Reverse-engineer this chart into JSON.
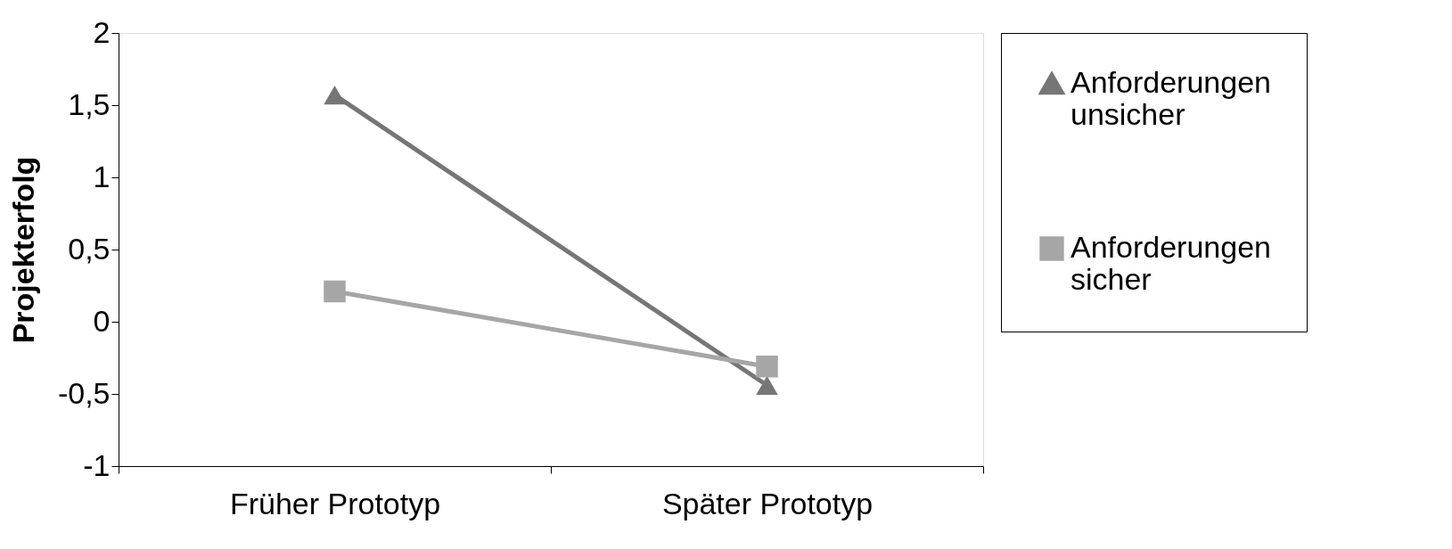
{
  "chart_data": {
    "type": "line",
    "ylabel": "Projekterfolg",
    "categories": [
      "Früher Prototyp",
      "Später Prototyp"
    ],
    "series": [
      {
        "name": "Anforderungen unsicher",
        "color": "#767676",
        "marker": "triangle",
        "values": [
          1.57,
          -0.44
        ]
      },
      {
        "name": "Anforderungen sicher",
        "color": "#a6a6a6",
        "marker": "square",
        "values": [
          0.21,
          -0.31
        ]
      }
    ],
    "ylim": [
      -1,
      2
    ],
    "yticks": [
      {
        "value": -1,
        "label": "-1"
      },
      {
        "value": -0.5,
        "label": "-0,5"
      },
      {
        "value": 0,
        "label": "0"
      },
      {
        "value": 0.5,
        "label": "0,5"
      },
      {
        "value": 1,
        "label": "1"
      },
      {
        "value": 1.5,
        "label": "1,5"
      },
      {
        "value": 2,
        "label": "2"
      }
    ],
    "grid": false,
    "legend": "right",
    "line_style": "solid"
  }
}
